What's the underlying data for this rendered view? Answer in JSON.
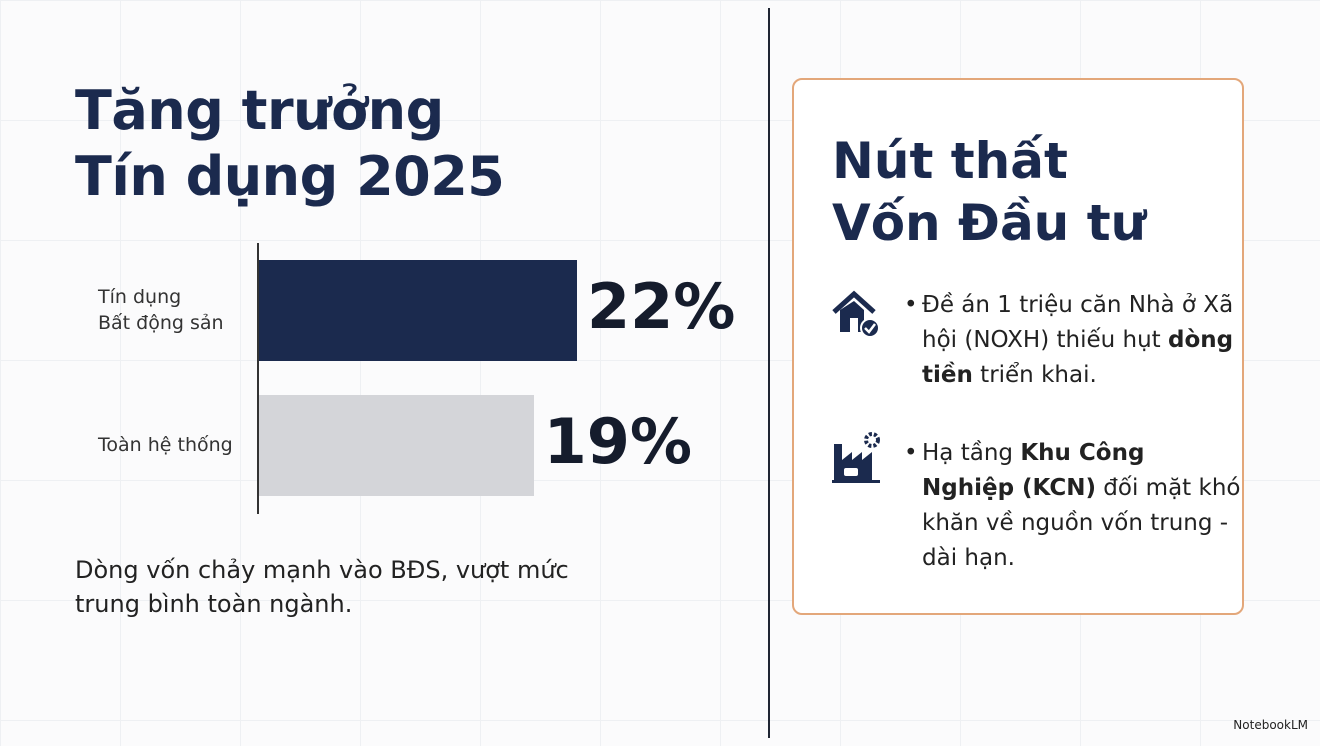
{
  "chart_data": {
    "type": "bar",
    "orientation": "horizontal",
    "categories": [
      "Tín dụng\nBất động sản",
      "Toàn hệ thống"
    ],
    "values": [
      22,
      19
    ],
    "value_labels": [
      "22%",
      "19%"
    ],
    "colors": [
      "#1b2a4e",
      "#d4d5d9"
    ]
  },
  "header": {
    "title": [
      "Tăng trưởng",
      "Tín dụng 2025"
    ]
  },
  "caption": "Dòng vốn chảy mạnh vào BĐS, vượt mức trung bình toàn ngành.",
  "card": {
    "title": [
      "Nút thất",
      "Vốn Đầu tư"
    ],
    "bullets": [
      {
        "segments": [
          {
            "text": "Đề án 1 triệu căn Nhà ở Xã hội (NOXH) thiếu hụt "
          },
          {
            "text": "dòng tiền",
            "bold": true
          },
          {
            "text": " triển khai."
          }
        ]
      },
      {
        "segments": [
          {
            "text": "Hạ tầng "
          },
          {
            "text": "Khu Công Nghiệp (KCN)",
            "bold": true
          },
          {
            "text": " đối mặt khó khăn về nguồn vốn trung - dài hạn."
          }
        ]
      }
    ]
  },
  "footer": {
    "brand": "NotebookLM"
  }
}
